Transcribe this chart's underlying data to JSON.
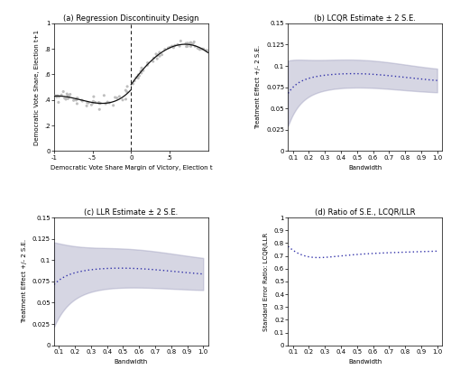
{
  "title_a": "(a) Regression Discontinuity Design",
  "title_b": "(b) LCQR Estimate ± 2 S.E.",
  "title_c": "(c) LLR Estimate ± 2 S.E.",
  "title_d": "(d) Ratio of S.E., LCQR/LLR",
  "xlabel_a": "Democratic Vote Share Margin of Victory, Election t",
  "ylabel_a": "Democratic Vote Share, Election t+1",
  "xlabel_bcd": "Bandwidth",
  "ylabel_bc": "Treatment Effect +/- 2 S.E.",
  "ylabel_d": "Standard Error Ratio: LCQR/LLR",
  "ylim_a": [
    0,
    1
  ],
  "xlim_a": [
    -1,
    1
  ],
  "yticks_a": [
    0.0,
    0.2,
    0.4,
    0.6,
    0.8,
    1.0
  ],
  "yticklabels_a": [
    "0",
    ".2",
    ".4",
    ".6",
    ".8",
    "1"
  ],
  "xticks_a": [
    -1.0,
    -0.5,
    0.0,
    0.5
  ],
  "xticklabels_a": [
    "-1",
    "-.5",
    "0",
    ".5"
  ],
  "ylim_bc": [
    0,
    0.15
  ],
  "yticks_bc": [
    0,
    0.025,
    0.05,
    0.075,
    0.1,
    0.125,
    0.15
  ],
  "yticklabels_bc": [
    "0",
    "0.025",
    "0.05",
    "0.075",
    "0.1",
    "0.125",
    "0.15"
  ],
  "ylim_d": [
    0,
    1
  ],
  "yticks_d": [
    0,
    0.1,
    0.2,
    0.3,
    0.4,
    0.5,
    0.6,
    0.7,
    0.8,
    0.9,
    1.0
  ],
  "yticklabels_d": [
    "0",
    "0.1",
    "0.2",
    "0.3",
    "0.4",
    "0.5",
    "0.6",
    "0.7",
    "0.8",
    "0.9",
    "1"
  ],
  "bw_ticks": [
    0.1,
    0.2,
    0.3,
    0.4,
    0.5,
    0.6,
    0.7,
    0.8,
    0.9,
    1.0
  ],
  "dot_color": "#bbbbbb",
  "line_color": "#111111",
  "ci_color": "#9999bb",
  "curve_color": "#3333aa",
  "background_color": "#ffffff"
}
